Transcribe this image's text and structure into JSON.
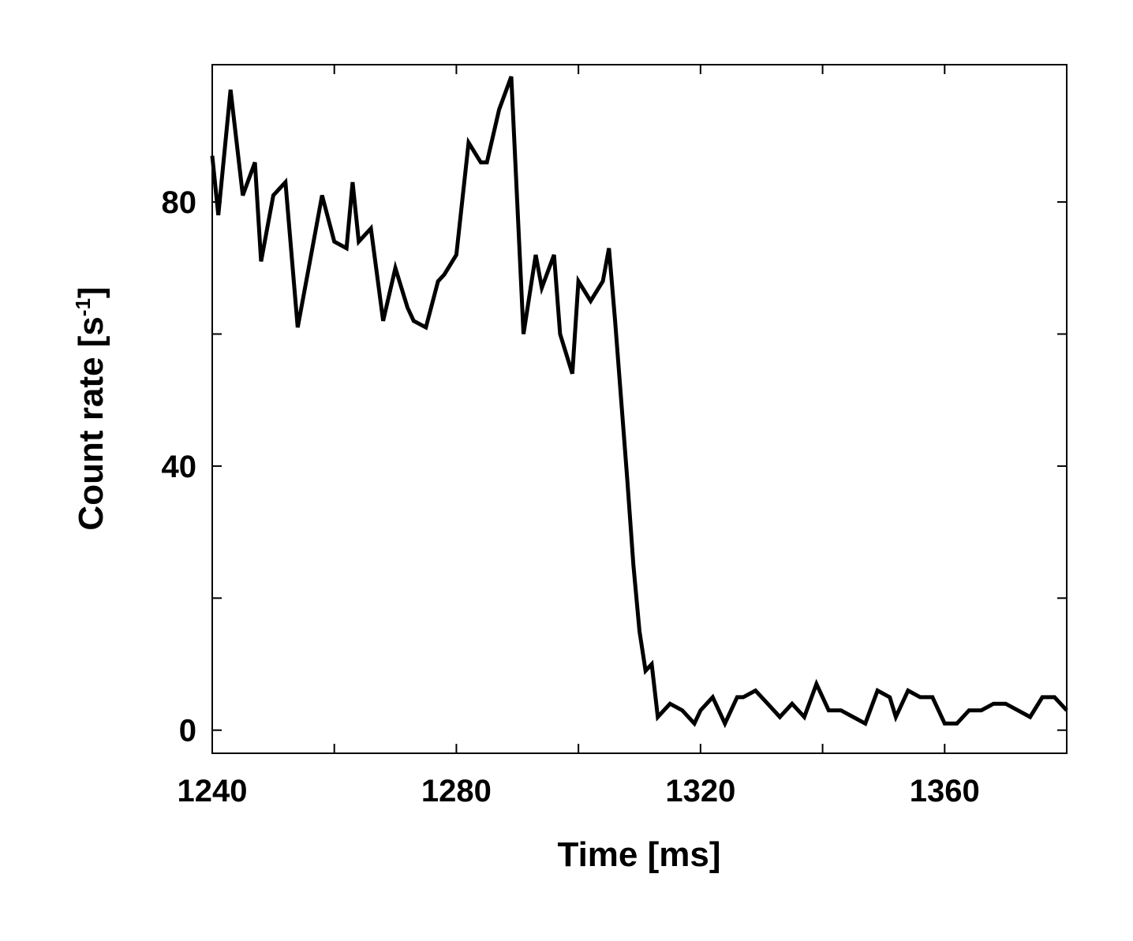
{
  "chart_data": {
    "type": "line",
    "title": "",
    "xlabel": "Time [ms]",
    "ylabel_main": "Count rate [s",
    "ylabel_sup": "-1",
    "ylabel_tail": "]",
    "xlim": [
      1240,
      1380
    ],
    "ylim": [
      -3.5,
      100.8
    ],
    "x_ticks": [
      {
        "value": 1240,
        "label": "1240"
      },
      {
        "value": 1280,
        "label": "1280"
      },
      {
        "value": 1320,
        "label": "1320"
      },
      {
        "value": 1360,
        "label": "1360"
      }
    ],
    "x_minor_ticks": [
      1260,
      1300,
      1340
    ],
    "y_ticks": [
      {
        "value": 0,
        "label": "0"
      },
      {
        "value": 40,
        "label": "40"
      },
      {
        "value": 80,
        "label": "80"
      }
    ],
    "y_minor_ticks": [
      20,
      60
    ],
    "grid": false,
    "line_color": "#000000",
    "series": [
      {
        "x": [
          1240,
          1241,
          1243,
          1245,
          1247,
          1248,
          1250,
          1252,
          1254,
          1256,
          1258,
          1260,
          1262,
          1263,
          1264,
          1266,
          1268,
          1270,
          1272,
          1273,
          1275,
          1277,
          1278,
          1280,
          1282,
          1284,
          1285,
          1287,
          1289,
          1291,
          1293,
          1294,
          1296,
          1297,
          1299,
          1300,
          1302,
          1304,
          1305,
          1306,
          1307,
          1308,
          1309,
          1310,
          1311,
          1312,
          1313,
          1315,
          1317,
          1319,
          1320,
          1322,
          1324,
          1326,
          1327,
          1329,
          1331,
          1333,
          1335,
          1337,
          1339,
          1341,
          1343,
          1345,
          1347,
          1349,
          1351,
          1352,
          1354,
          1356,
          1358,
          1360,
          1362,
          1364,
          1366,
          1368,
          1370,
          1372,
          1374,
          1376,
          1378,
          1380
        ],
        "y": [
          87,
          78,
          97,
          81,
          86,
          71,
          81,
          83,
          61,
          71,
          81,
          74,
          73,
          83,
          74,
          76,
          62,
          70,
          64,
          62,
          61,
          68,
          69,
          72,
          89,
          86,
          86,
          94,
          99,
          60,
          72,
          67,
          72,
          60,
          54,
          68,
          65,
          68,
          73,
          62,
          50,
          38,
          25,
          15,
          9,
          10,
          2,
          4,
          3,
          1,
          3,
          5,
          1,
          5,
          5,
          6,
          4,
          2,
          4,
          2,
          7,
          3,
          3,
          2,
          1,
          6,
          5,
          2,
          6,
          5,
          5,
          1,
          1,
          3,
          3,
          4,
          4,
          3,
          2,
          5,
          5,
          3
        ]
      }
    ]
  }
}
